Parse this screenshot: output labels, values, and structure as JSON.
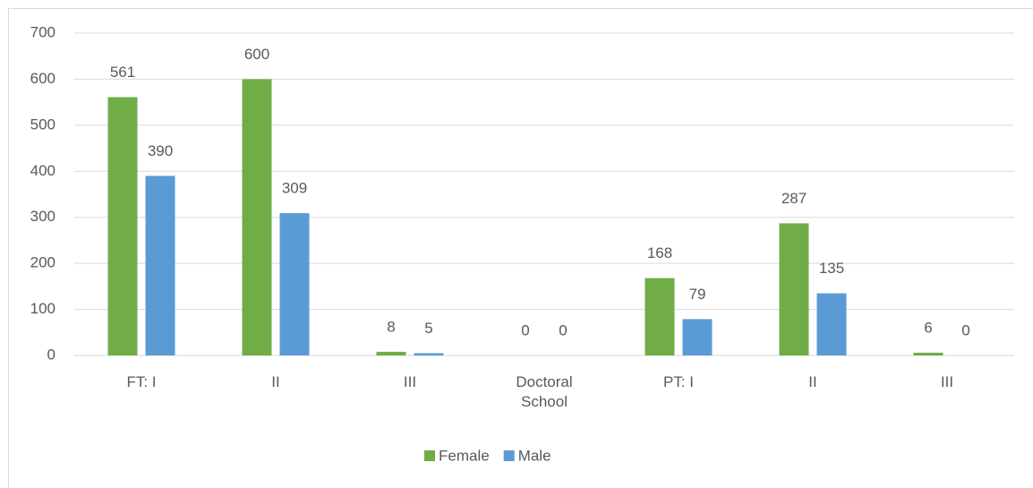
{
  "chart_data": {
    "type": "bar",
    "categories": [
      "FT: I",
      "II",
      "III",
      "Doctoral School",
      "PT: I",
      "II",
      "III"
    ],
    "series": [
      {
        "name": "Female",
        "color": "#70ad47",
        "values": [
          561,
          600,
          8,
          0,
          168,
          287,
          6
        ]
      },
      {
        "name": "Male",
        "color": "#5b9bd5",
        "values": [
          390,
          309,
          5,
          0,
          79,
          135,
          0
        ]
      }
    ],
    "ylim": [
      0,
      700
    ],
    "yticks": [
      0,
      100,
      200,
      300,
      400,
      500,
      600,
      700
    ],
    "grid": true,
    "legend": "bottom"
  }
}
